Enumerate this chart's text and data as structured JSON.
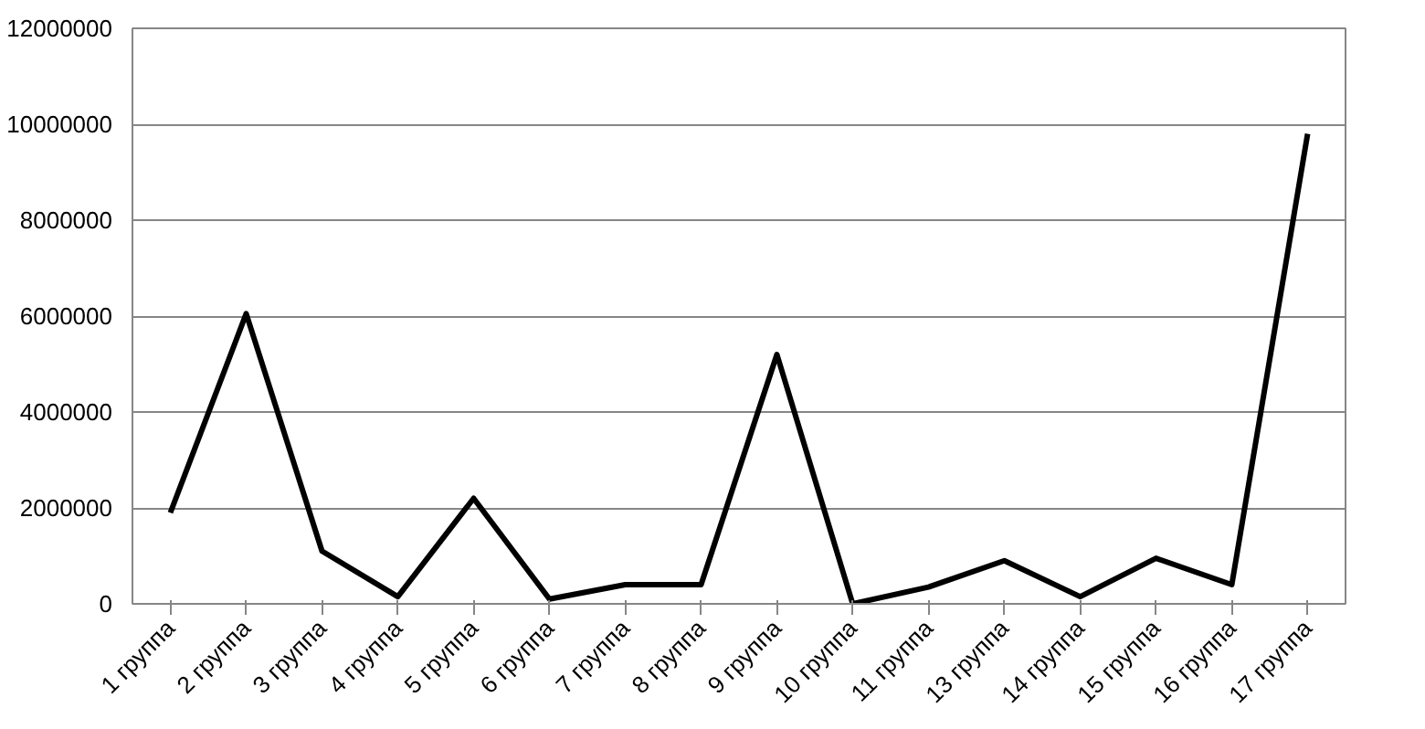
{
  "chart_data": {
    "type": "line",
    "categories": [
      "1 группа",
      "2 группа",
      "3 группа",
      "4 группа",
      "5 группа",
      "6 группа",
      "7 группа",
      "8 группа",
      "9 группа",
      "10 группа",
      "11 группа",
      "13 группа",
      "14 группа",
      "15 группа",
      "16 группа",
      "17 группа"
    ],
    "series": [
      {
        "color": "#000000",
        "values": [
          1900000,
          6050000,
          1100000,
          150000,
          2200000,
          100000,
          400000,
          400000,
          5200000,
          0,
          350000,
          900000,
          150000,
          950000,
          400000,
          9800000
        ]
      }
    ],
    "ylim": [
      0,
      12000000
    ],
    "yticks": [
      0,
      2000000,
      4000000,
      6000000,
      8000000,
      10000000,
      12000000
    ],
    "grid": "y",
    "marker": "none",
    "line_style": "solid"
  }
}
